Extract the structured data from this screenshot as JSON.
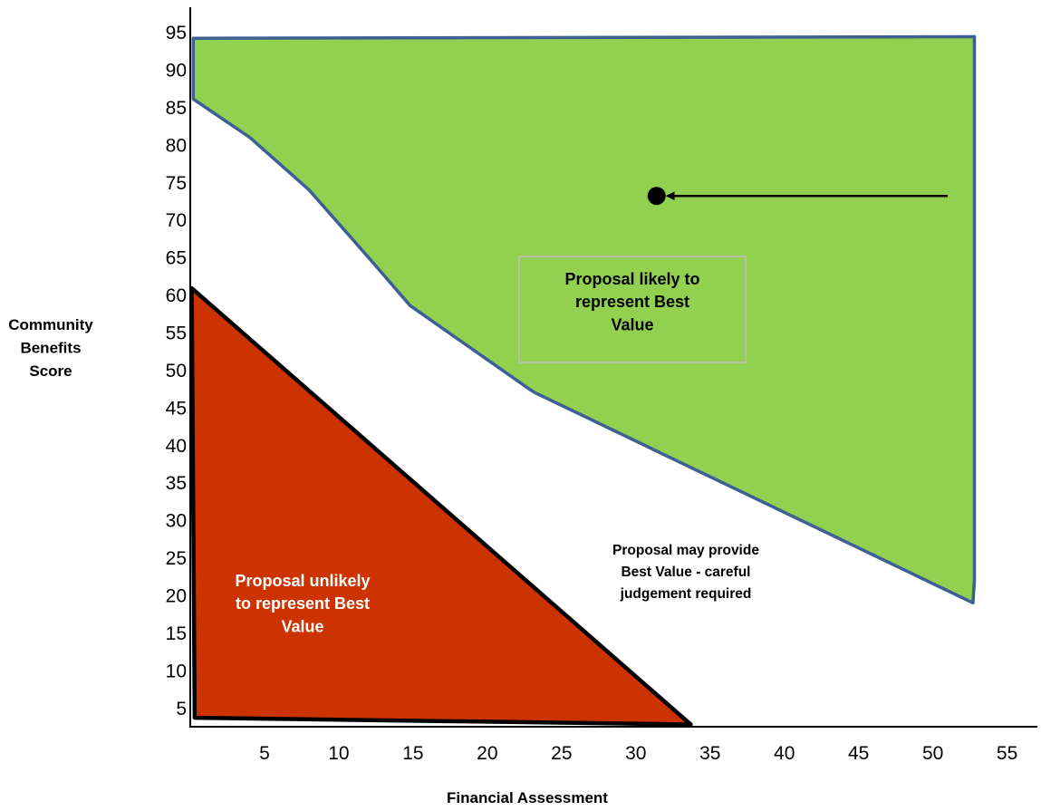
{
  "chart_data": {
    "type": "area",
    "xlabel": "Financial Assessment",
    "ylabel_lines": [
      "Community",
      "Benefits",
      "Score"
    ],
    "x_ticks": [
      5,
      10,
      15,
      20,
      25,
      30,
      35,
      40,
      45,
      50,
      55
    ],
    "y_ticks": [
      5,
      10,
      15,
      20,
      25,
      30,
      35,
      40,
      45,
      50,
      55,
      60,
      65,
      70,
      75,
      80,
      85,
      90,
      95
    ],
    "xlim": [
      0,
      56
    ],
    "ylim": [
      2.5,
      97
    ],
    "grid": false,
    "regions": [
      {
        "name": "best-value-zone",
        "label_lines": [
          "Proposal likely to",
          "represent Best",
          "Value"
        ],
        "fill": "#92d050",
        "stroke": "#3d5f94",
        "polygon": [
          [
            0.2,
            94.2
          ],
          [
            52.8,
            94.4
          ],
          [
            52.8,
            22
          ],
          [
            52.7,
            19
          ],
          [
            23.2,
            47
          ],
          [
            22.8,
            47.5
          ],
          [
            14.8,
            58.6
          ],
          [
            12,
            65
          ],
          [
            8,
            74
          ],
          [
            4,
            81
          ],
          [
            0.2,
            86.1
          ]
        ]
      },
      {
        "name": "unlikely-zone",
        "label_lines": [
          "Proposal unlikely",
          "to represent Best",
          "Value"
        ],
        "fill": "#cc3300",
        "stroke": "#000000",
        "polygon": [
          [
            0.1,
            60.9
          ],
          [
            33.7,
            2.8
          ],
          [
            0.3,
            3.7
          ]
        ]
      }
    ],
    "middle_label_lines": [
      "Proposal  may provide",
      "Best Value - careful",
      "judgement required"
    ],
    "marker": {
      "x": 31.4,
      "y": 73.2,
      "arrow_from_x": 51
    },
    "colors": {
      "green_zone": "#92d050",
      "red_zone": "#cc3300",
      "outline_blue": "#3d5f94",
      "label_box": "#bfbfbf",
      "axis": "#000000"
    }
  }
}
